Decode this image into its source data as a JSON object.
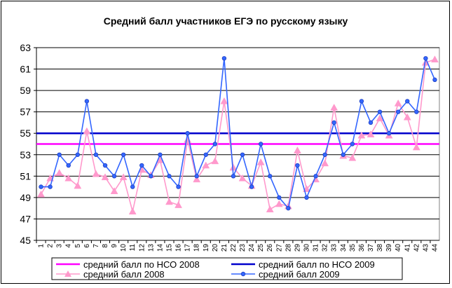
{
  "chart_data": {
    "type": "line",
    "title": "Средний балл участников ЕГЭ по русскому языку",
    "x": [
      "1",
      "2",
      "3",
      "4",
      "5",
      "6",
      "7",
      "8",
      "9",
      "10",
      "11",
      "12",
      "13",
      "14",
      "15",
      "16",
      "17",
      "18",
      "19",
      "20",
      "21",
      "22",
      "23",
      "24",
      "25",
      "26",
      "27",
      "28",
      "29",
      "30",
      "31",
      "32",
      "33",
      "34",
      "35",
      "36",
      "37",
      "38",
      "39",
      "40",
      "41",
      "42",
      "43",
      "44"
    ],
    "ylim": [
      45,
      63
    ],
    "yticks": [
      "45",
      "47",
      "49",
      "51",
      "53",
      "55",
      "57",
      "59",
      "61",
      "63"
    ],
    "grid": true,
    "legend_position": "bottom",
    "series": [
      {
        "name": "средний балл по НСО 2008",
        "style": "hline",
        "color": "#ff00ff",
        "value": 54
      },
      {
        "name": "средний балл по НСО 2009",
        "style": "hline",
        "color": "#0000cc",
        "value": 55
      },
      {
        "name": "средний балл 2008",
        "style": "line-triangle",
        "color": "#ff99cc",
        "values": [
          49.3,
          50.8,
          51.3,
          50.8,
          50.1,
          55.2,
          51.2,
          50.9,
          49.6,
          50.9,
          47.7,
          51.6,
          51.1,
          52.5,
          48.6,
          48.3,
          54.4,
          50.7,
          52.0,
          52.4,
          58.0,
          51.8,
          50.8,
          50.1,
          52.3,
          47.9,
          48.4,
          48.2,
          53.4,
          49.8,
          50.7,
          52.2,
          57.4,
          52.9,
          52.7,
          54.8,
          54.9,
          56.4,
          54.8,
          57.8,
          56.5,
          53.7,
          61.6,
          61.9
        ]
      },
      {
        "name": "средний балл 2009",
        "style": "line-circle",
        "color": "#3366ff",
        "values": [
          50,
          50,
          53,
          52,
          53,
          58,
          53,
          52,
          51,
          53,
          50,
          52,
          51,
          53,
          51,
          50,
          55,
          51,
          53,
          54,
          62,
          51,
          53,
          50,
          54,
          51,
          49,
          48,
          52,
          49,
          51,
          53,
          56,
          53,
          54,
          58,
          56,
          57,
          55,
          57,
          58,
          57,
          62,
          60
        ]
      }
    ]
  }
}
